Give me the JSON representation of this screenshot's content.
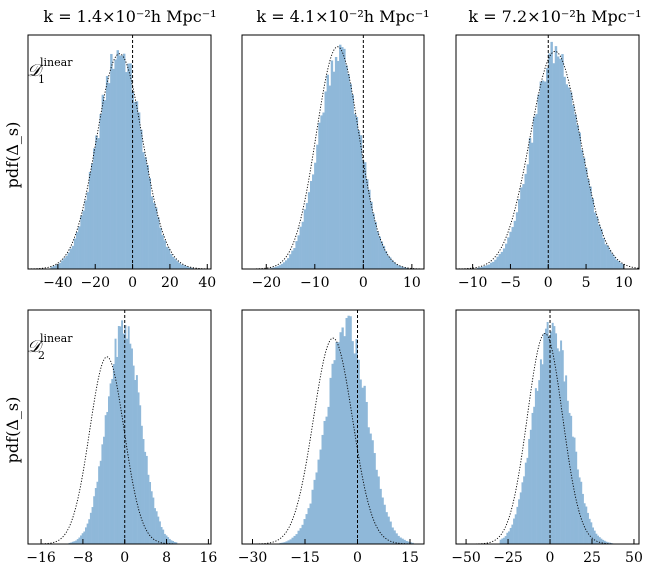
{
  "column_titles": [
    "k = 1.4×10⁻²h Mpc⁻¹",
    "k = 4.1×10⁻²h Mpc⁻¹",
    "k = 7.2×10⁻²h Mpc⁻¹"
  ],
  "row_ylabels": [
    "pdf(Δ_s)",
    "pdf(Δ_s)"
  ],
  "row_panel_labels": [
    {
      "main": "𝒟",
      "sub": "1",
      "sup": "linear"
    },
    {
      "main": "𝒟",
      "sub": "2",
      "sup": "linear"
    }
  ],
  "colors": {
    "histogram": "#8fb8d9",
    "gaussian": "#000000",
    "zero_line": "#000000"
  },
  "chart_data": [
    {
      "type": "bar",
      "row": 0,
      "col": 0,
      "title": "k = 1.4×10⁻²h Mpc⁻¹",
      "xlim": [
        -56,
        42
      ],
      "xticks": [
        -40,
        -20,
        0,
        20,
        40
      ],
      "xtick_labels": [
        "−40",
        "−20",
        "0",
        "20",
        "40"
      ],
      "histogram": {
        "mean": -7,
        "sd": 12,
        "peak": 0.93,
        "range": [
          -44,
          36
        ],
        "bins": 70
      },
      "gaussian": {
        "mean": -7,
        "sd": 12.3,
        "peak": 0.92
      },
      "vline_x": 0,
      "panel_label": "𝒟₁^linear"
    },
    {
      "type": "bar",
      "row": 0,
      "col": 1,
      "title": "k = 4.1×10⁻²h Mpc⁻¹",
      "xlim": [
        -25,
        12.5
      ],
      "xticks": [
        -20,
        -10,
        0,
        10
      ],
      "xtick_labels": [
        "−20",
        "−10",
        "0",
        "10"
      ],
      "histogram": {
        "mean": -5,
        "sd": 4.3,
        "peak": 0.93,
        "range": [
          -20,
          10
        ],
        "bins": 70
      },
      "gaussian": {
        "mean": -5.3,
        "sd": 4.4,
        "peak": 0.95
      },
      "vline_x": 0
    },
    {
      "type": "bar",
      "row": 0,
      "col": 2,
      "title": "k = 7.2×10⁻²h Mpc⁻¹",
      "xlim": [
        -12.2,
        12
      ],
      "xticks": [
        -10,
        -5,
        0,
        5,
        10
      ],
      "xtick_labels": [
        "−10",
        "−5",
        "0",
        "5",
        "10"
      ],
      "histogram": {
        "mean": 1,
        "sd": 3.2,
        "peak": 0.93,
        "range": [
          -10,
          10
        ],
        "bins": 70
      },
      "gaussian": {
        "mean": 0.9,
        "sd": 3.3,
        "peak": 0.93
      },
      "vline_x": 0
    },
    {
      "type": "bar",
      "row": 1,
      "col": 0,
      "title": "",
      "xlim": [
        -18.5,
        16.5
      ],
      "xticks": [
        -16,
        -8,
        0,
        8,
        16
      ],
      "xtick_labels": [
        "−16",
        "−8",
        "0",
        "8",
        "16"
      ],
      "histogram": {
        "mean": -0.2,
        "sd": 3.2,
        "peak": 0.93,
        "range": [
          -12,
          10
        ],
        "bins": 70
      },
      "gaussian": {
        "mean": -3.4,
        "sd": 3.3,
        "peak": 0.8
      },
      "vline_x": 0,
      "panel_label": "𝒟₂^linear"
    },
    {
      "type": "bar",
      "row": 1,
      "col": 1,
      "title": "",
      "xlim": [
        -33,
        19
      ],
      "xticks": [
        -30,
        -15,
        0,
        15
      ],
      "xtick_labels": [
        "−30",
        "−15",
        "0",
        "15"
      ],
      "histogram": {
        "mean": -3,
        "sd": 5.8,
        "peak": 0.93,
        "range": [
          -24,
          16
        ],
        "bins": 70
      },
      "gaussian": {
        "mean": -7,
        "sd": 5.6,
        "peak": 0.88
      },
      "vline_x": 0
    },
    {
      "type": "bar",
      "row": 1,
      "col": 2,
      "title": "",
      "xlim": [
        -56,
        53
      ],
      "xticks": [
        -50,
        -25,
        0,
        25,
        50
      ],
      "xtick_labels": [
        "−50",
        "−25",
        "0",
        "25",
        "50"
      ],
      "histogram": {
        "mean": 1,
        "sd": 10.8,
        "peak": 0.93,
        "range": [
          -30,
          40
        ],
        "bins": 70
      },
      "gaussian": {
        "mean": -3,
        "sd": 10.5,
        "peak": 0.9
      },
      "vline_x": 0
    }
  ]
}
